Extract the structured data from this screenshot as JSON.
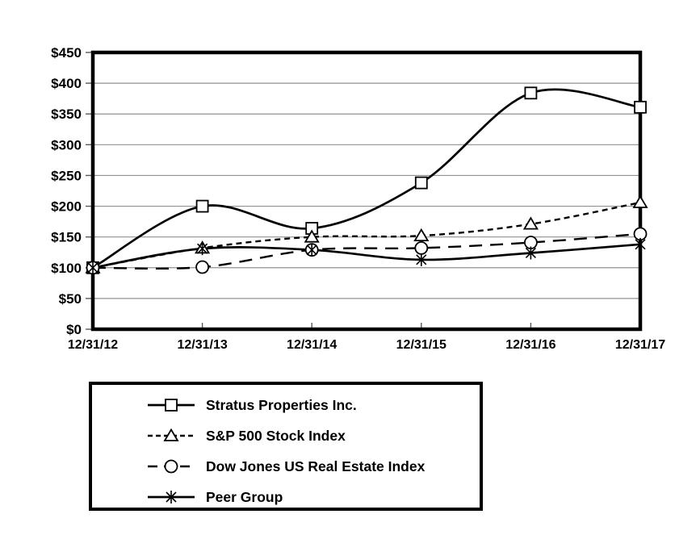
{
  "chart_data": {
    "type": "line",
    "title": "",
    "xlabel": "",
    "ylabel": "",
    "categories": [
      "12/31/12",
      "12/31/13",
      "12/31/14",
      "12/31/15",
      "12/31/16",
      "12/31/17"
    ],
    "series": [
      {
        "name": "Stratus Properties Inc.",
        "marker": "square",
        "line": "solid",
        "values": [
          100,
          200,
          164,
          238,
          384,
          361
        ]
      },
      {
        "name": "S&P 500 Stock Index",
        "marker": "triangle",
        "line": "short-dash",
        "values": [
          100,
          132,
          150,
          152,
          171,
          206
        ]
      },
      {
        "name": "Dow Jones US Real Estate Index",
        "marker": "circle",
        "line": "long-dash",
        "values": [
          100,
          101,
          129,
          132,
          141,
          155
        ]
      },
      {
        "name": "Peer Group",
        "marker": "asterisk",
        "line": "solid",
        "values": [
          100,
          131,
          129,
          113,
          124,
          138
        ]
      }
    ],
    "ylim": [
      0,
      450
    ],
    "y_tick_step": 50,
    "y_tick_labels": [
      "$0",
      "$50",
      "$100",
      "$150",
      "$200",
      "$250",
      "$300",
      "$350",
      "$400",
      "$450"
    ],
    "grid": "horizontal",
    "smoothed_lines": true,
    "legend_position": "bottom",
    "colors": {
      "line": "#000000",
      "grid": "#919191",
      "frame": "#000000",
      "text": "#000000",
      "background": "#ffffff",
      "marker_fill": "#ffffff"
    }
  }
}
